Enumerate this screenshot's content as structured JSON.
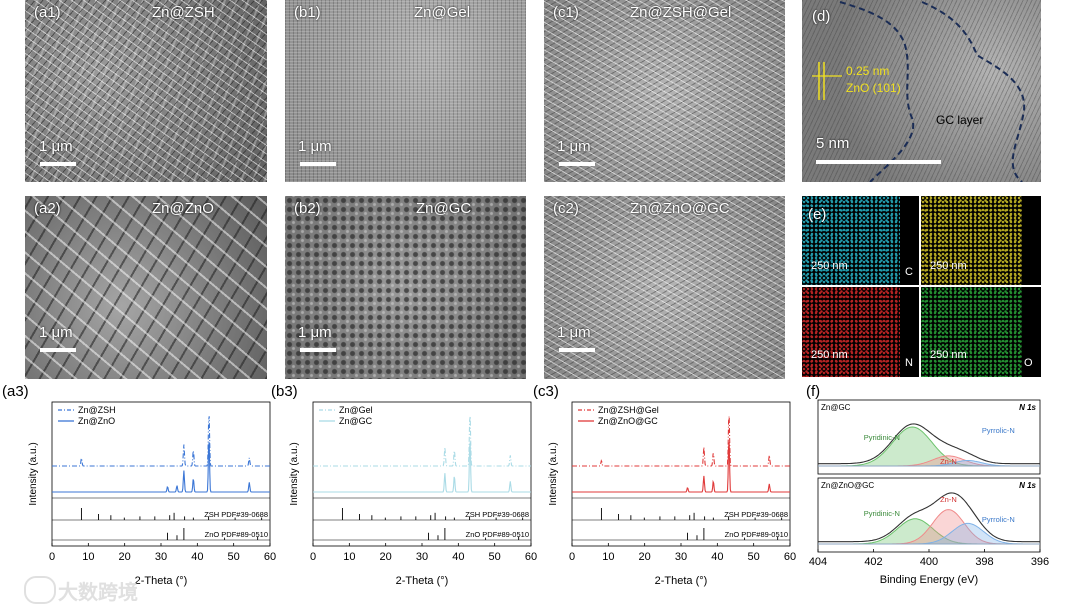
{
  "sem_panels": [
    {
      "id": "a1",
      "label": "(a1)",
      "name": "Zn@ZSH",
      "scale": "1 μm"
    },
    {
      "id": "b1",
      "label": "(b1)",
      "name": "Zn@Gel",
      "scale": "1 μm"
    },
    {
      "id": "c1",
      "label": "(c1)",
      "name": "Zn@ZSH@Gel",
      "scale": "1 μm"
    },
    {
      "id": "a2",
      "label": "(a2)",
      "name": "Zn@ZnO",
      "scale": "1 μm"
    },
    {
      "id": "b2",
      "label": "(b2)",
      "name": "Zn@GC",
      "scale": "1 μm"
    },
    {
      "id": "c2",
      "label": "(c2)",
      "name": "Zn@ZnO@GC",
      "scale": "1 μm"
    }
  ],
  "tem": {
    "label": "(d)",
    "d_spacing": "0.25 nm",
    "plane": "ZnO (101)",
    "layer": "GC layer",
    "scale": "5 nm"
  },
  "eds": {
    "label": "(e)",
    "maps": [
      {
        "scale": "250 nm",
        "element": "C",
        "color": "#29b6c9"
      },
      {
        "scale": "250 nm",
        "element": "",
        "color": "#d4c629"
      },
      {
        "scale": "250 nm",
        "element": "N",
        "color": "#d42a2a"
      },
      {
        "scale": "250 nm",
        "element": "O",
        "color": "#2aa83a"
      }
    ]
  },
  "chart_data": [
    {
      "panel": "(a3)",
      "type": "line",
      "xlabel": "2-Theta (°)",
      "ylabel": "Intensity (a.u.)",
      "xlim": [
        0,
        60
      ],
      "xticks": [
        0,
        10,
        20,
        30,
        40,
        50,
        60
      ],
      "series": [
        {
          "name": "Zn@ZSH",
          "style": "dashdot",
          "color": "#3b76d6",
          "peaks": [
            [
              8.1,
              0.15
            ],
            [
              36.3,
              0.4
            ],
            [
              38.9,
              0.3
            ],
            [
              43.2,
              1.0
            ],
            [
              54.3,
              0.15
            ]
          ]
        },
        {
          "name": "Zn@ZnO",
          "style": "solid",
          "color": "#3b76d6",
          "peaks": [
            [
              31.8,
              0.1
            ],
            [
              34.4,
              0.12
            ],
            [
              36.3,
              0.4
            ],
            [
              38.9,
              0.25
            ],
            [
              43.2,
              1.0
            ],
            [
              54.3,
              0.18
            ]
          ]
        }
      ],
      "references": [
        {
          "label": "ZSH  PDF#39-0688",
          "lines": [
            [
              8.1,
              1.0
            ],
            [
              12.8,
              0.5
            ],
            [
              16.2,
              0.4
            ],
            [
              19.9,
              0.2
            ],
            [
              24.2,
              0.3
            ],
            [
              28.3,
              0.3
            ],
            [
              32.4,
              0.4
            ],
            [
              33.6,
              0.6
            ],
            [
              36.5,
              0.3
            ],
            [
              38.9,
              0.2
            ],
            [
              43.1,
              0.3
            ],
            [
              50.4,
              0.2
            ],
            [
              57.7,
              0.2
            ]
          ]
        },
        {
          "label": "ZnO  PDF#89-0510",
          "lines": [
            [
              31.8,
              0.6
            ],
            [
              34.4,
              0.4
            ],
            [
              36.3,
              1.0
            ],
            [
              47.5,
              0.2
            ],
            [
              56.6,
              0.3
            ]
          ]
        }
      ]
    },
    {
      "panel": "(b3)",
      "type": "line",
      "xlabel": "2-Theta (°)",
      "ylabel": "Intensity (a.u.)",
      "xlim": [
        0,
        60
      ],
      "xticks": [
        0,
        10,
        20,
        30,
        40,
        50,
        60
      ],
      "series": [
        {
          "name": "Zn@Gel",
          "style": "dashdot",
          "color": "#aadbe6",
          "peaks": [
            [
              36.3,
              0.35
            ],
            [
              38.9,
              0.3
            ],
            [
              43.2,
              1.0
            ],
            [
              54.3,
              0.2
            ]
          ]
        },
        {
          "name": "Zn@GC",
          "style": "solid",
          "color": "#aadbe6",
          "peaks": [
            [
              36.3,
              0.35
            ],
            [
              38.9,
              0.3
            ],
            [
              43.2,
              1.0
            ],
            [
              54.3,
              0.2
            ]
          ]
        }
      ],
      "references": [
        {
          "label": "ZSH  PDF#39-0688",
          "lines": [
            [
              8.1,
              1.0
            ],
            [
              12.8,
              0.5
            ],
            [
              16.2,
              0.4
            ],
            [
              19.9,
              0.2
            ],
            [
              24.2,
              0.3
            ],
            [
              28.3,
              0.3
            ],
            [
              32.4,
              0.4
            ],
            [
              33.6,
              0.6
            ],
            [
              36.5,
              0.3
            ],
            [
              38.9,
              0.2
            ],
            [
              43.1,
              0.3
            ],
            [
              50.4,
              0.2
            ],
            [
              57.7,
              0.2
            ]
          ]
        },
        {
          "label": "ZnO  PDF#89-0510",
          "lines": [
            [
              31.8,
              0.6
            ],
            [
              34.4,
              0.4
            ],
            [
              36.3,
              1.0
            ],
            [
              47.5,
              0.2
            ],
            [
              56.6,
              0.3
            ]
          ]
        }
      ]
    },
    {
      "panel": "(c3)",
      "type": "line",
      "xlabel": "2-Theta (°)",
      "ylabel": "Intensity (a.u.)",
      "xlim": [
        0,
        60
      ],
      "xticks": [
        0,
        10,
        20,
        30,
        40,
        50,
        60
      ],
      "series": [
        {
          "name": "Zn@ZSH@Gel",
          "style": "dashdot",
          "color": "#e03a3a",
          "peaks": [
            [
              8.1,
              0.1
            ],
            [
              36.3,
              0.35
            ],
            [
              38.9,
              0.25
            ],
            [
              43.2,
              1.0
            ],
            [
              54.3,
              0.2
            ]
          ]
        },
        {
          "name": "Zn@ZnO@GC",
          "style": "solid",
          "color": "#e03a3a",
          "peaks": [
            [
              31.8,
              0.08
            ],
            [
              36.3,
              0.3
            ],
            [
              38.9,
              0.2
            ],
            [
              43.2,
              1.0
            ],
            [
              54.3,
              0.15
            ]
          ]
        }
      ],
      "references": [
        {
          "label": "ZSH  PDF#39-0688",
          "lines": [
            [
              8.1,
              1.0
            ],
            [
              12.8,
              0.5
            ],
            [
              16.2,
              0.4
            ],
            [
              19.9,
              0.2
            ],
            [
              24.2,
              0.3
            ],
            [
              28.3,
              0.3
            ],
            [
              32.4,
              0.4
            ],
            [
              33.6,
              0.6
            ],
            [
              36.5,
              0.3
            ],
            [
              38.9,
              0.2
            ],
            [
              43.1,
              0.3
            ],
            [
              50.4,
              0.2
            ],
            [
              57.7,
              0.2
            ]
          ]
        },
        {
          "label": "ZnO  PDF#89-0510",
          "lines": [
            [
              31.8,
              0.6
            ],
            [
              34.4,
              0.4
            ],
            [
              36.3,
              1.0
            ],
            [
              47.5,
              0.2
            ],
            [
              56.6,
              0.3
            ]
          ]
        }
      ]
    },
    {
      "panel": "(f)",
      "type": "area",
      "xlabel": "Binding Energy (eV)",
      "xlim": [
        404,
        396
      ],
      "xticks": [
        404,
        402,
        400,
        398,
        396
      ],
      "subplots": [
        {
          "title": "Zn@GC",
          "tag": "N 1s",
          "components": [
            {
              "name": "Pyridinic-N",
              "center": 400.6,
              "width": 1.0,
              "height": 0.85,
              "color": "#6cc36c"
            },
            {
              "name": "Zn-N",
              "center": 399.3,
              "width": 0.8,
              "height": 0.22,
              "color": "#f08a8a"
            },
            {
              "name": "Pyrrolic-N",
              "center": 398.6,
              "width": 0.7,
              "height": 0.12,
              "color": "#7fb2e8"
            }
          ]
        },
        {
          "title": "Zn@ZnO@GC",
          "tag": "N 1s",
          "components": [
            {
              "name": "Pyridinic-N",
              "center": 400.5,
              "width": 0.9,
              "height": 0.55,
              "color": "#6cc36c"
            },
            {
              "name": "Zn-N",
              "center": 399.3,
              "width": 0.8,
              "height": 0.75,
              "color": "#f08a8a"
            },
            {
              "name": "Pyrrolic-N",
              "center": 398.6,
              "width": 0.8,
              "height": 0.45,
              "color": "#7fb2e8"
            }
          ]
        }
      ]
    }
  ],
  "watermark": "大数跨境"
}
